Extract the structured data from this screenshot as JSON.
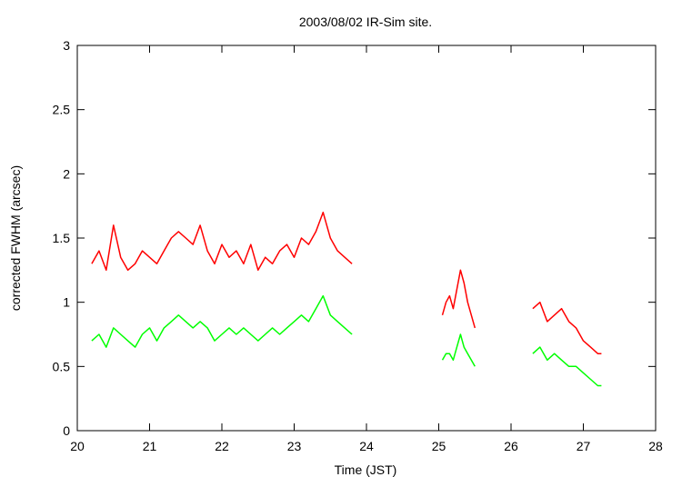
{
  "chart_data": {
    "type": "line",
    "title": "2003/08/02 IR-Sim site.",
    "xlabel": "Time (JST)",
    "ylabel": "corrected FWHM (arcsec)",
    "xlim": [
      20,
      28
    ],
    "ylim": [
      0,
      3
    ],
    "x_ticks": [
      "20",
      "21",
      "22",
      "23",
      "24",
      "25",
      "26",
      "27",
      "28"
    ],
    "y_ticks": [
      "0",
      "0.5",
      "1",
      "1.5",
      "2",
      "2.5",
      "3"
    ],
    "grid": false,
    "legend": "none",
    "series": [
      {
        "color": "#ff0000",
        "segments": [
          {
            "x": [
              20.2,
              20.3,
              20.4,
              20.5,
              20.6,
              20.7,
              20.8,
              20.9,
              21.0,
              21.1,
              21.2,
              21.3,
              21.4,
              21.5,
              21.6,
              21.7,
              21.8,
              21.9,
              22.0,
              22.1,
              22.2,
              22.3,
              22.4,
              22.5,
              22.6,
              22.7,
              22.8,
              22.9,
              23.0,
              23.1,
              23.2,
              23.3,
              23.4,
              23.5,
              23.6,
              23.7,
              23.8
            ],
            "y": [
              1.3,
              1.4,
              1.25,
              1.6,
              1.35,
              1.25,
              1.3,
              1.4,
              1.35,
              1.3,
              1.4,
              1.5,
              1.55,
              1.5,
              1.45,
              1.6,
              1.4,
              1.3,
              1.45,
              1.35,
              1.4,
              1.3,
              1.45,
              1.25,
              1.35,
              1.3,
              1.4,
              1.45,
              1.35,
              1.5,
              1.45,
              1.55,
              1.7,
              1.5,
              1.4,
              1.35,
              1.3
            ]
          },
          {
            "x": [
              25.05,
              25.1,
              25.15,
              25.2,
              25.25,
              25.3,
              25.35,
              25.4,
              25.45,
              25.5
            ],
            "y": [
              0.9,
              1.0,
              1.05,
              0.95,
              1.1,
              1.25,
              1.15,
              1.0,
              0.9,
              0.8
            ]
          },
          {
            "x": [
              26.3,
              26.4,
              26.5,
              26.6,
              26.7,
              26.8,
              26.9,
              27.0,
              27.1,
              27.2,
              27.25
            ],
            "y": [
              0.95,
              1.0,
              0.85,
              0.9,
              0.95,
              0.85,
              0.8,
              0.7,
              0.65,
              0.6,
              0.6
            ]
          }
        ]
      },
      {
        "color": "#00ff00",
        "segments": [
          {
            "x": [
              20.2,
              20.3,
              20.4,
              20.5,
              20.6,
              20.7,
              20.8,
              20.9,
              21.0,
              21.1,
              21.2,
              21.3,
              21.4,
              21.5,
              21.6,
              21.7,
              21.8,
              21.9,
              22.0,
              22.1,
              22.2,
              22.3,
              22.4,
              22.5,
              22.6,
              22.7,
              22.8,
              22.9,
              23.0,
              23.1,
              23.2,
              23.3,
              23.4,
              23.5,
              23.6,
              23.7,
              23.8
            ],
            "y": [
              0.7,
              0.75,
              0.65,
              0.8,
              0.75,
              0.7,
              0.65,
              0.75,
              0.8,
              0.7,
              0.8,
              0.85,
              0.9,
              0.85,
              0.8,
              0.85,
              0.8,
              0.7,
              0.75,
              0.8,
              0.75,
              0.8,
              0.75,
              0.7,
              0.75,
              0.8,
              0.75,
              0.8,
              0.85,
              0.9,
              0.85,
              0.95,
              1.05,
              0.9,
              0.85,
              0.8,
              0.75
            ]
          },
          {
            "x": [
              25.05,
              25.1,
              25.15,
              25.2,
              25.25,
              25.3,
              25.35,
              25.4,
              25.45,
              25.5
            ],
            "y": [
              0.55,
              0.6,
              0.6,
              0.55,
              0.65,
              0.75,
              0.65,
              0.6,
              0.55,
              0.5
            ]
          },
          {
            "x": [
              26.3,
              26.4,
              26.5,
              26.6,
              26.7,
              26.8,
              26.9,
              27.0,
              27.1,
              27.2,
              27.25
            ],
            "y": [
              0.6,
              0.65,
              0.55,
              0.6,
              0.55,
              0.5,
              0.5,
              0.45,
              0.4,
              0.35,
              0.35
            ]
          }
        ]
      }
    ]
  }
}
